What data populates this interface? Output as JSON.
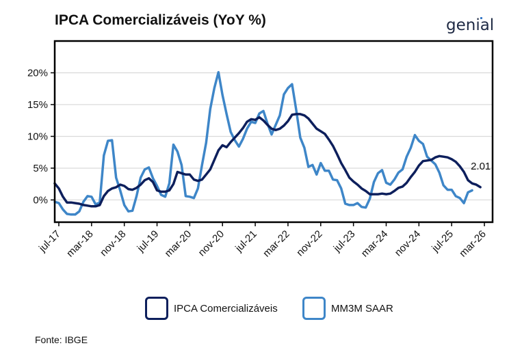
{
  "title": "IPCA Comercializáveis (YoY %)",
  "logo_text": "genial",
  "source": "Fonte: IBGE",
  "colors": {
    "series1": "#0d1f5c",
    "series2": "#3e86c8",
    "grid": "#d9d9d9",
    "frame": "#000000"
  },
  "chart_data": {
    "type": "line",
    "title": "IPCA Comercializáveis (YoY %)",
    "xlabel": "",
    "ylabel": "",
    "ylim": [
      -3.5,
      25
    ],
    "yticks": [
      0,
      5,
      10,
      15,
      20
    ],
    "ytick_labels": [
      "0%",
      "5%",
      "10%",
      "15%",
      "20%"
    ],
    "xticks": [
      "jul-17",
      "mar-18",
      "nov-18",
      "jul-19",
      "mar-20",
      "nov-20",
      "jul-21",
      "mar-22",
      "nov-22",
      "jul-23",
      "mar-24",
      "nov-24",
      "jul-25",
      "mar-26"
    ],
    "x_start": "2017-06",
    "x_end": "2026-05",
    "grid": true,
    "legend_position": "bottom",
    "annotation": {
      "text": "2.01",
      "series": "IPCA Comercializáveis",
      "x": "2026-01",
      "y": 2.01
    },
    "series": [
      {
        "name": "IPCA Comercializáveis",
        "color": "#0d1f5c",
        "points": [
          [
            "2017-06",
            2.6
          ],
          [
            "2017-07",
            1.8
          ],
          [
            "2017-08",
            0.5
          ],
          [
            "2017-09",
            -0.4
          ],
          [
            "2017-10",
            -0.4
          ],
          [
            "2017-11",
            -0.5
          ],
          [
            "2017-12",
            -0.6
          ],
          [
            "2018-01",
            -0.8
          ],
          [
            "2018-02",
            -0.9
          ],
          [
            "2018-03",
            -1.0
          ],
          [
            "2018-04",
            -1.0
          ],
          [
            "2018-05",
            -0.8
          ],
          [
            "2018-06",
            0.6
          ],
          [
            "2018-07",
            1.4
          ],
          [
            "2018-08",
            1.8
          ],
          [
            "2018-09",
            2.0
          ],
          [
            "2018-10",
            2.4
          ],
          [
            "2018-11",
            2.2
          ],
          [
            "2018-12",
            1.7
          ],
          [
            "2019-01",
            1.6
          ],
          [
            "2019-02",
            1.9
          ],
          [
            "2019-03",
            2.4
          ],
          [
            "2019-04",
            3.1
          ],
          [
            "2019-05",
            3.4
          ],
          [
            "2019-06",
            2.8
          ],
          [
            "2019-07",
            1.5
          ],
          [
            "2019-08",
            1.3
          ],
          [
            "2019-09",
            1.3
          ],
          [
            "2019-10",
            1.5
          ],
          [
            "2019-11",
            2.5
          ],
          [
            "2019-12",
            4.4
          ],
          [
            "2020-01",
            4.2
          ],
          [
            "2020-02",
            4.0
          ],
          [
            "2020-03",
            4.0
          ],
          [
            "2020-04",
            3.2
          ],
          [
            "2020-05",
            3.0
          ],
          [
            "2020-06",
            3.2
          ],
          [
            "2020-07",
            4.0
          ],
          [
            "2020-08",
            4.8
          ],
          [
            "2020-09",
            6.3
          ],
          [
            "2020-10",
            7.8
          ],
          [
            "2020-11",
            8.6
          ],
          [
            "2020-12",
            8.3
          ],
          [
            "2021-01",
            9.1
          ],
          [
            "2021-02",
            9.8
          ],
          [
            "2021-03",
            10.5
          ],
          [
            "2021-04",
            11.3
          ],
          [
            "2021-05",
            12.3
          ],
          [
            "2021-06",
            12.7
          ],
          [
            "2021-07",
            12.6
          ],
          [
            "2021-08",
            13.0
          ],
          [
            "2021-09",
            12.5
          ],
          [
            "2021-10",
            11.8
          ],
          [
            "2021-11",
            11.2
          ],
          [
            "2021-12",
            11.0
          ],
          [
            "2022-01",
            11.2
          ],
          [
            "2022-02",
            11.7
          ],
          [
            "2022-03",
            12.4
          ],
          [
            "2022-04",
            13.4
          ],
          [
            "2022-05",
            13.5
          ],
          [
            "2022-06",
            13.5
          ],
          [
            "2022-07",
            13.3
          ],
          [
            "2022-08",
            12.8
          ],
          [
            "2022-09",
            12.0
          ],
          [
            "2022-10",
            11.2
          ],
          [
            "2022-11",
            10.8
          ],
          [
            "2022-12",
            10.4
          ],
          [
            "2023-01",
            9.5
          ],
          [
            "2023-02",
            8.5
          ],
          [
            "2023-03",
            7.2
          ],
          [
            "2023-04",
            5.8
          ],
          [
            "2023-05",
            4.7
          ],
          [
            "2023-06",
            3.5
          ],
          [
            "2023-07",
            2.9
          ],
          [
            "2023-08",
            2.4
          ],
          [
            "2023-09",
            1.8
          ],
          [
            "2023-10",
            1.4
          ],
          [
            "2023-11",
            0.9
          ],
          [
            "2023-12",
            0.9
          ],
          [
            "2024-01",
            0.9
          ],
          [
            "2024-02",
            1.0
          ],
          [
            "2024-03",
            0.9
          ],
          [
            "2024-04",
            1.0
          ],
          [
            "2024-05",
            1.4
          ],
          [
            "2024-06",
            1.9
          ],
          [
            "2024-07",
            2.1
          ],
          [
            "2024-08",
            2.7
          ],
          [
            "2024-09",
            3.6
          ],
          [
            "2024-10",
            4.4
          ],
          [
            "2024-11",
            5.4
          ],
          [
            "2024-12",
            6.1
          ],
          [
            "2025-01",
            6.2
          ],
          [
            "2025-02",
            6.3
          ],
          [
            "2025-03",
            6.7
          ],
          [
            "2025-04",
            6.9
          ],
          [
            "2025-05",
            6.8
          ],
          [
            "2025-06",
            6.7
          ],
          [
            "2025-07",
            6.4
          ],
          [
            "2025-08",
            6.0
          ],
          [
            "2025-09",
            5.3
          ],
          [
            "2025-10",
            4.4
          ],
          [
            "2025-11",
            3.1
          ],
          [
            "2025-12",
            2.6
          ],
          [
            "2026-01",
            2.4
          ],
          [
            "2026-02",
            2.01
          ]
        ]
      },
      {
        "name": "MM3M SAAR",
        "color": "#3e86c8",
        "points": [
          [
            "2017-06",
            -0.3
          ],
          [
            "2017-07",
            -0.5
          ],
          [
            "2017-08",
            -1.5
          ],
          [
            "2017-09",
            -2.2
          ],
          [
            "2017-10",
            -2.3
          ],
          [
            "2017-11",
            -2.3
          ],
          [
            "2017-12",
            -1.8
          ],
          [
            "2018-01",
            -0.3
          ],
          [
            "2018-02",
            0.6
          ],
          [
            "2018-03",
            0.5
          ],
          [
            "2018-04",
            -0.7
          ],
          [
            "2018-05",
            -0.4
          ],
          [
            "2018-06",
            7.0
          ],
          [
            "2018-07",
            9.3
          ],
          [
            "2018-08",
            9.4
          ],
          [
            "2018-09",
            3.5
          ],
          [
            "2018-10",
            1.5
          ],
          [
            "2018-11",
            -0.8
          ],
          [
            "2018-12",
            -1.8
          ],
          [
            "2019-01",
            -1.7
          ],
          [
            "2019-02",
            0.6
          ],
          [
            "2019-03",
            3.5
          ],
          [
            "2019-04",
            4.8
          ],
          [
            "2019-05",
            5.1
          ],
          [
            "2019-06",
            3.4
          ],
          [
            "2019-07",
            2.2
          ],
          [
            "2019-08",
            0.8
          ],
          [
            "2019-09",
            0.5
          ],
          [
            "2019-10",
            2.6
          ],
          [
            "2019-11",
            8.7
          ],
          [
            "2019-12",
            7.6
          ],
          [
            "2020-01",
            5.5
          ],
          [
            "2020-02",
            0.6
          ],
          [
            "2020-03",
            0.5
          ],
          [
            "2020-04",
            0.3
          ],
          [
            "2020-05",
            1.8
          ],
          [
            "2020-06",
            5.5
          ],
          [
            "2020-07",
            9.0
          ],
          [
            "2020-08",
            14.3
          ],
          [
            "2020-09",
            17.6
          ],
          [
            "2020-10",
            20.1
          ],
          [
            "2020-11",
            16.5
          ],
          [
            "2020-12",
            13.5
          ],
          [
            "2021-01",
            10.7
          ],
          [
            "2021-02",
            9.4
          ],
          [
            "2021-03",
            8.4
          ],
          [
            "2021-04",
            9.6
          ],
          [
            "2021-05",
            11.2
          ],
          [
            "2021-06",
            12.3
          ],
          [
            "2021-07",
            12.1
          ],
          [
            "2021-08",
            13.6
          ],
          [
            "2021-09",
            14.0
          ],
          [
            "2021-10",
            12.0
          ],
          [
            "2021-11",
            10.3
          ],
          [
            "2021-12",
            11.8
          ],
          [
            "2022-01",
            13.3
          ],
          [
            "2022-02",
            16.6
          ],
          [
            "2022-03",
            17.6
          ],
          [
            "2022-04",
            18.2
          ],
          [
            "2022-05",
            14.2
          ],
          [
            "2022-06",
            9.8
          ],
          [
            "2022-07",
            8.2
          ],
          [
            "2022-08",
            5.2
          ],
          [
            "2022-09",
            5.5
          ],
          [
            "2022-10",
            4.0
          ],
          [
            "2022-11",
            5.8
          ],
          [
            "2022-12",
            4.6
          ],
          [
            "2023-01",
            4.6
          ],
          [
            "2023-02",
            3.2
          ],
          [
            "2023-03",
            3.1
          ],
          [
            "2023-04",
            1.8
          ],
          [
            "2023-05",
            -0.6
          ],
          [
            "2023-06",
            -0.8
          ],
          [
            "2023-07",
            -0.8
          ],
          [
            "2023-08",
            -0.5
          ],
          [
            "2023-09",
            -1.1
          ],
          [
            "2023-10",
            -1.2
          ],
          [
            "2023-11",
            0.2
          ],
          [
            "2023-12",
            2.8
          ],
          [
            "2024-01",
            4.2
          ],
          [
            "2024-02",
            4.7
          ],
          [
            "2024-03",
            2.7
          ],
          [
            "2024-04",
            2.4
          ],
          [
            "2024-05",
            3.2
          ],
          [
            "2024-06",
            4.3
          ],
          [
            "2024-07",
            4.8
          ],
          [
            "2024-08",
            6.8
          ],
          [
            "2024-09",
            8.2
          ],
          [
            "2024-10",
            10.2
          ],
          [
            "2024-11",
            9.3
          ],
          [
            "2024-12",
            8.8
          ],
          [
            "2025-01",
            6.8
          ],
          [
            "2025-02",
            6.2
          ],
          [
            "2025-03",
            5.6
          ],
          [
            "2025-04",
            4.3
          ],
          [
            "2025-05",
            2.3
          ],
          [
            "2025-06",
            1.6
          ],
          [
            "2025-07",
            1.6
          ],
          [
            "2025-08",
            0.6
          ],
          [
            "2025-09",
            0.3
          ],
          [
            "2025-10",
            -0.5
          ],
          [
            "2025-11",
            1.2
          ],
          [
            "2025-12",
            1.5
          ]
        ]
      }
    ]
  }
}
